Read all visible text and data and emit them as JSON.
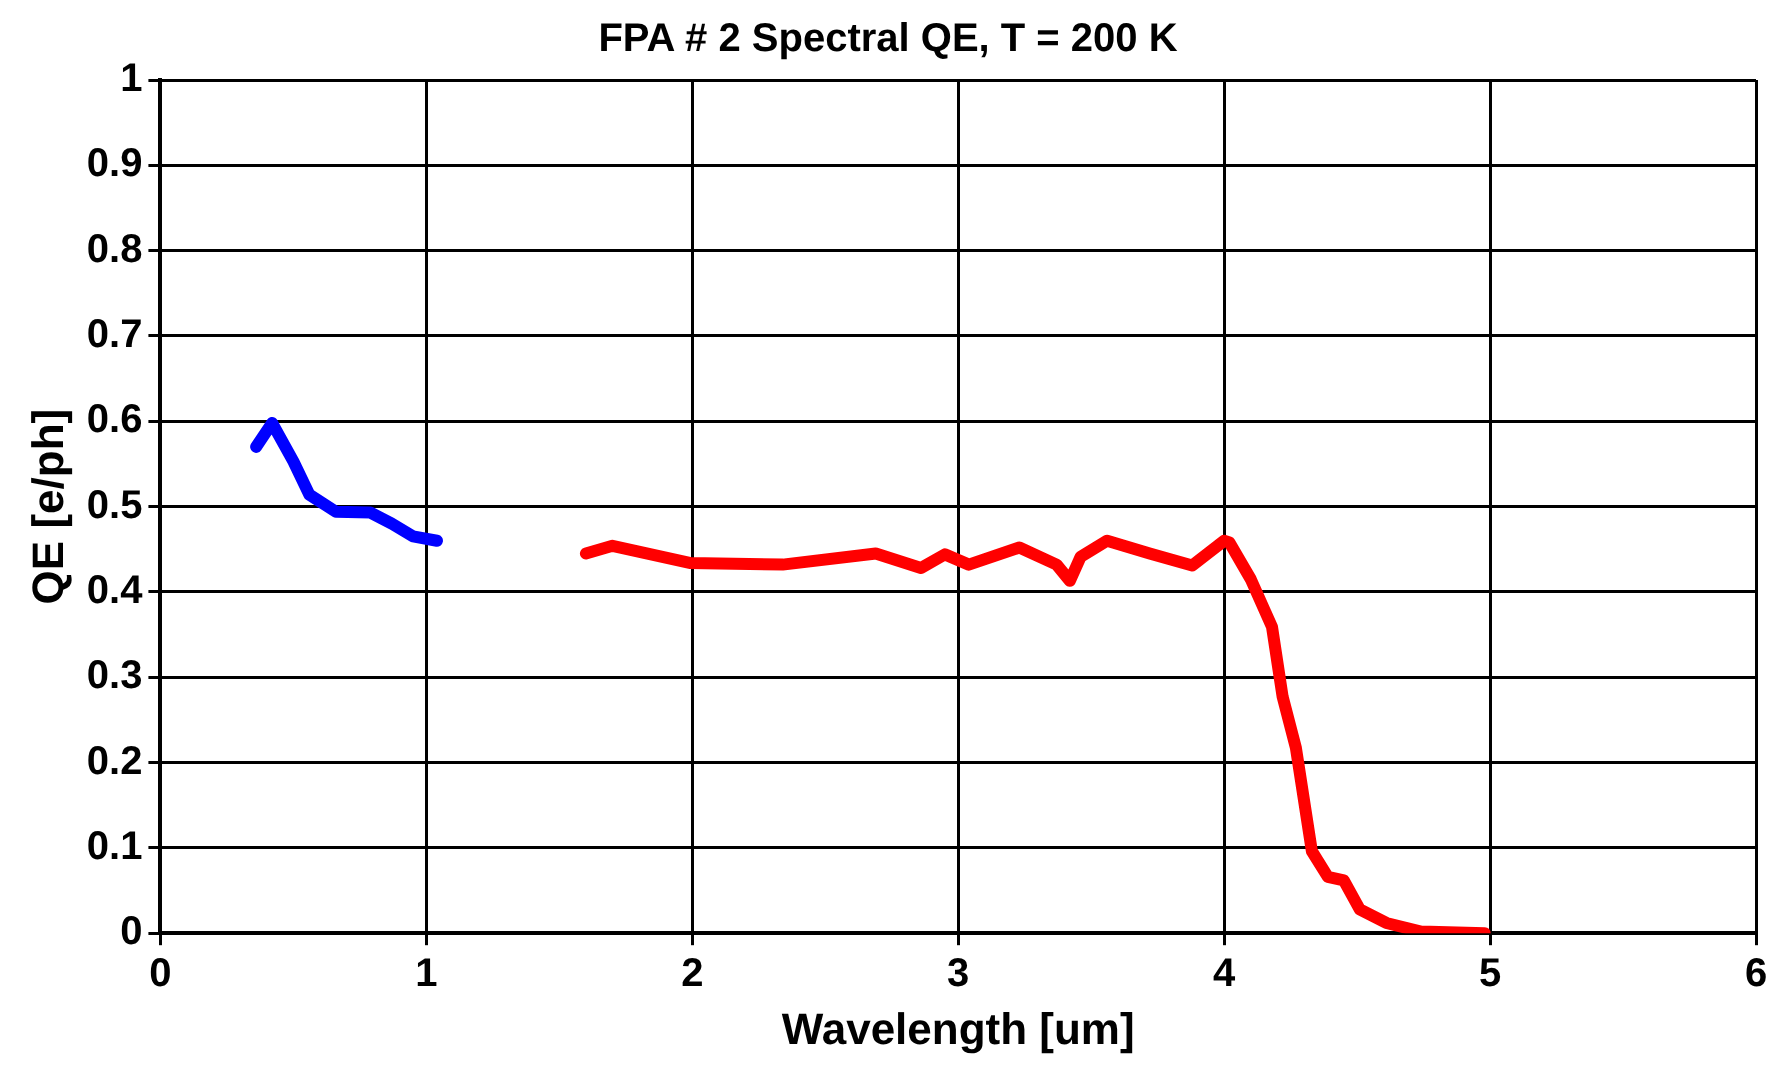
{
  "chart_data": {
    "type": "line",
    "title": "FPA # 2 Spectral QE, T = 200 K",
    "xlabel": "Wavelength [um]",
    "ylabel": "QE [e/ph]",
    "xlim": [
      0,
      6
    ],
    "xticks": [
      0,
      1,
      2,
      3,
      4,
      5,
      6
    ],
    "ylim": [
      0,
      1
    ],
    "yticks": [
      0,
      0.1,
      0.2,
      0.3,
      0.4,
      0.5,
      0.6,
      0.7,
      0.8,
      0.9,
      1
    ],
    "grid": true,
    "legend": false,
    "marker": "none",
    "line_style": "solid",
    "series": [
      {
        "color": "#0000ff",
        "x": [
          0.36,
          0.42,
          0.5,
          0.56,
          0.66,
          0.79,
          0.87,
          0.95,
          1.04
        ],
        "values": [
          0.57,
          0.598,
          0.553,
          0.514,
          0.494,
          0.493,
          0.48,
          0.465,
          0.46
        ]
      },
      {
        "color": "#ff0000",
        "x": [
          1.6,
          1.7,
          1.99,
          2.34,
          2.69,
          2.86,
          2.95,
          3.04,
          3.23,
          3.37,
          3.42,
          3.46,
          3.56,
          3.72,
          3.88,
          4.0,
          4.02,
          4.1,
          4.18,
          4.22,
          4.27,
          4.33,
          4.39,
          4.45,
          4.51,
          4.61,
          4.74,
          4.98
        ],
        "values": [
          0.445,
          0.454,
          0.434,
          0.432,
          0.445,
          0.428,
          0.444,
          0.432,
          0.452,
          0.432,
          0.413,
          0.441,
          0.46,
          0.445,
          0.431,
          0.46,
          0.458,
          0.415,
          0.359,
          0.277,
          0.217,
          0.096,
          0.066,
          0.062,
          0.028,
          0.012,
          0.002,
          0
        ]
      }
    ]
  }
}
